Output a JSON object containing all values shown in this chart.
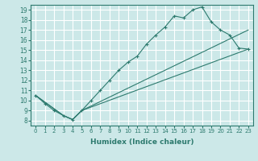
{
  "xlabel": "Humidex (Indice chaleur)",
  "bg_color": "#cce8e8",
  "grid_color": "#ffffff",
  "line_color": "#2d7a6e",
  "xlim": [
    -0.5,
    23.5
  ],
  "ylim": [
    7.5,
    19.5
  ],
  "xticks": [
    0,
    1,
    2,
    3,
    4,
    5,
    6,
    7,
    8,
    9,
    10,
    11,
    12,
    13,
    14,
    15,
    16,
    17,
    18,
    19,
    20,
    21,
    22,
    23
  ],
  "yticks": [
    8,
    9,
    10,
    11,
    12,
    13,
    14,
    15,
    16,
    17,
    18,
    19
  ],
  "line1_x": [
    0,
    1,
    2,
    3,
    4,
    5,
    6,
    7,
    8,
    9,
    10,
    11,
    12,
    13,
    14,
    15,
    16,
    17,
    18,
    19,
    20,
    21,
    22,
    23
  ],
  "line1_y": [
    10.5,
    9.7,
    9.0,
    8.5,
    8.1,
    9.0,
    10.0,
    11.0,
    12.0,
    13.0,
    13.8,
    14.4,
    15.6,
    16.5,
    17.3,
    18.4,
    18.2,
    19.0,
    19.3,
    17.8,
    17.0,
    16.5,
    15.2,
    15.1
  ],
  "line2_x": [
    0,
    3,
    4,
    5,
    23
  ],
  "line2_y": [
    10.5,
    8.5,
    8.1,
    9.0,
    15.1
  ],
  "line3_x": [
    0,
    3,
    4,
    5,
    23
  ],
  "line3_y": [
    10.5,
    8.5,
    8.1,
    9.0,
    17.0
  ]
}
